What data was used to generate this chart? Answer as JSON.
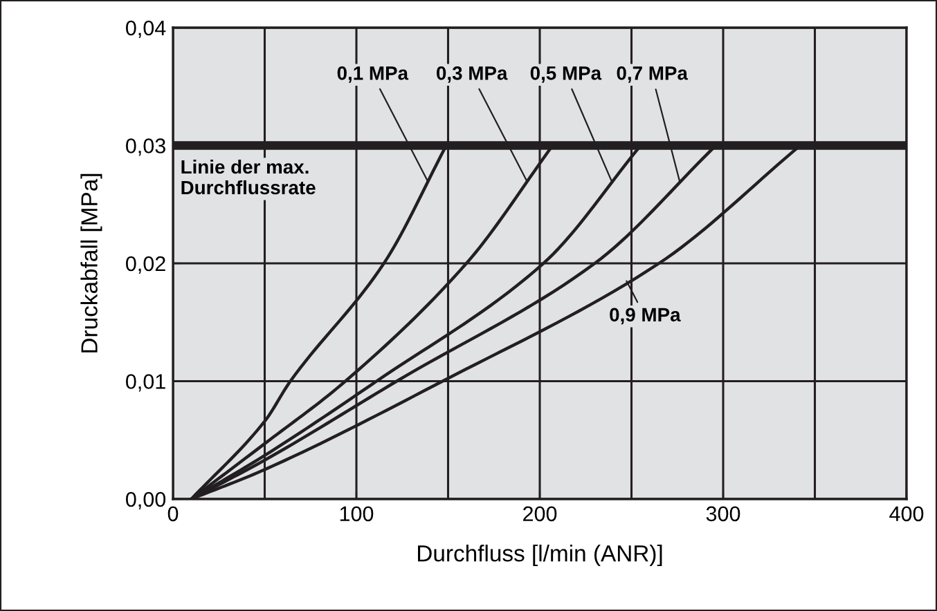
{
  "chart_data": {
    "type": "line",
    "xlabel": "Durchfluss [l/min (ANR)]",
    "ylabel": "Druckabfall [MPa]",
    "series": [
      {
        "name": "0,1 MPa",
        "color": "#231f20",
        "x": [
          10,
          50,
          64,
          115,
          149
        ],
        "values": [
          0,
          0.0066,
          0.01,
          0.02,
          0.03
        ]
      },
      {
        "name": "0,3 MPa",
        "color": "#231f20",
        "x": [
          10,
          50,
          94,
          160,
          207
        ],
        "values": [
          0,
          0.0047,
          0.01,
          0.02,
          0.03
        ]
      },
      {
        "name": "0,5 MPa",
        "color": "#231f20",
        "x": [
          10,
          50,
          111,
          202,
          255
        ],
        "values": [
          0,
          0.0037,
          0.01,
          0.02,
          0.03
        ]
      },
      {
        "name": "0,7 MPa",
        "color": "#231f20",
        "x": [
          10,
          50,
          122,
          230,
          296
        ],
        "values": [
          0,
          0.0033,
          0.01,
          0.02,
          0.03
        ]
      },
      {
        "name": "0,9 MPa",
        "color": "#231f20",
        "x": [
          10,
          50,
          147,
          265,
          342
        ],
        "values": [
          0,
          0.0025,
          0.01,
          0.02,
          0.03
        ]
      }
    ],
    "ref_lines": [
      {
        "axis": "y",
        "value": 0.03,
        "label": "Linie der max.\nDurchflussrate",
        "color": "#231f20"
      }
    ],
    "xlim": [
      0,
      400
    ],
    "ylim": [
      0,
      0.04
    ],
    "xticks": [
      0,
      {
        "value": 50,
        "label": null
      },
      100,
      {
        "value": 150,
        "label": null
      },
      200,
      {
        "value": 250,
        "label": null
      },
      300,
      {
        "value": 350,
        "label": null
      },
      400
    ],
    "yticks": [
      {
        "value": 0,
        "label": "0,00"
      },
      {
        "value": 0.01,
        "label": "0,01"
      },
      {
        "value": 0.02,
        "label": "0,02"
      },
      {
        "value": 0.03,
        "label": "0,03"
      },
      {
        "value": 0.04,
        "label": "0,04"
      }
    ],
    "grid": true,
    "marker": "none",
    "line_style": "solid"
  }
}
